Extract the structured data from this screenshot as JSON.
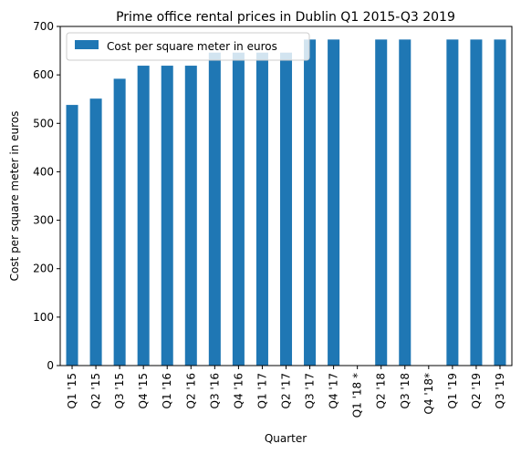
{
  "chart_data": {
    "type": "bar",
    "title": "Prime office rental prices in Dublin Q1 2015-Q3 2019",
    "xlabel": "Quarter",
    "ylabel": "Cost per square meter in euros",
    "ylim": [
      0,
      700
    ],
    "yticks": [
      0,
      100,
      200,
      300,
      400,
      500,
      600,
      700
    ],
    "grid": false,
    "legend_position": "top-left",
    "bar_color": "#1f77b4",
    "categories": [
      "Q1 '15",
      "Q2 '15",
      "Q3 '15",
      "Q4 '15",
      "Q1 '16",
      "Q2 '16",
      "Q3 '16",
      "Q4 '16",
      "Q1 '17",
      "Q2 '17",
      "Q3 '17",
      "Q4 '17",
      "Q1 '18 *",
      "Q2 '18",
      "Q3 '18",
      "Q4 '18*",
      "Q1 '19",
      "Q2 '19",
      "Q3 '19"
    ],
    "series": [
      {
        "name": "Cost per square meter in euros",
        "values": [
          538,
          551,
          592,
          619,
          619,
          619,
          646,
          646,
          646,
          646,
          673,
          673,
          null,
          673,
          673,
          null,
          673,
          673,
          673
        ]
      }
    ]
  }
}
